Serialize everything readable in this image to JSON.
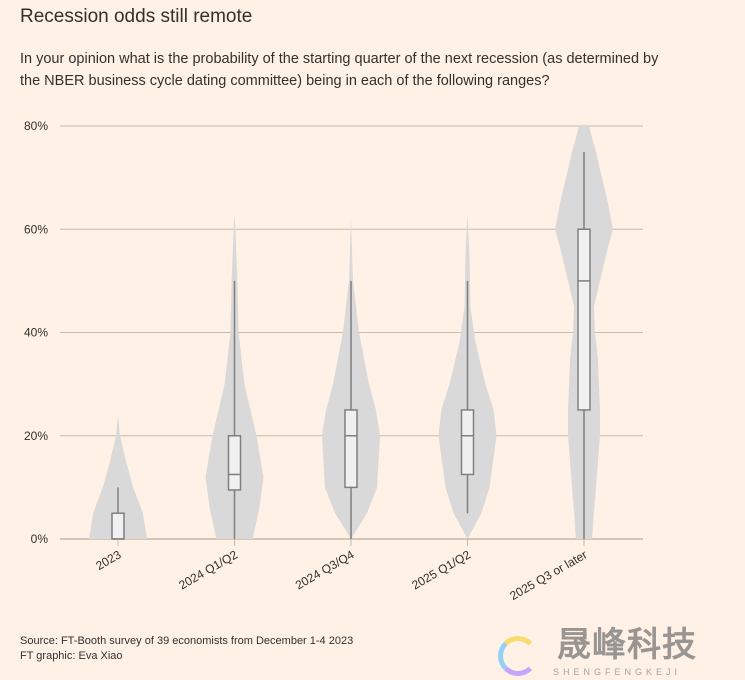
{
  "title": "Recession odds still remote",
  "subtitle": "In your opinion what is the probability of the starting quarter of the next recession (as determined by the NBER business cycle dating committee) being in each of the following ranges?",
  "footer": {
    "source": "Source: FT-Booth survey of 39 economists from December 1-4 2023",
    "graphic": "FT graphic: Eva Xiao"
  },
  "watermark": {
    "text_cn": "晟峰科技",
    "text_en": "SHENGFENGKEJI"
  },
  "colors": {
    "background": "#fff1e5",
    "violin": "#d9d9d9",
    "box_fill": "#f0f0f0",
    "box_stroke": "#7f7f7f",
    "grid": "#c8b9ab"
  },
  "chart_data": {
    "type": "violin-box",
    "title": "Recession odds still remote",
    "ylim": [
      0,
      80
    ],
    "yticks": [
      0,
      20,
      40,
      60,
      80
    ],
    "ytick_labels": [
      "0%",
      "20%",
      "40%",
      "60%",
      "80%"
    ],
    "grid": true,
    "categories": [
      "2023",
      "2024 Q1/Q2",
      "2024 Q3/Q4",
      "2025 Q1/Q2",
      "2025 Q3 or later"
    ],
    "boxes": [
      {
        "min": 0,
        "q1": 0,
        "median": 0,
        "q3": 5,
        "max": 10
      },
      {
        "min": 0,
        "q1": 9.5,
        "median": 12.5,
        "q3": 20,
        "max": 50
      },
      {
        "min": 0,
        "q1": 10,
        "median": 20,
        "q3": 25,
        "max": 50
      },
      {
        "min": 5,
        "q1": 12.5,
        "median": 20,
        "q3": 25,
        "max": 50
      },
      {
        "min": 0,
        "q1": 25,
        "median": 50,
        "q3": 60,
        "max": 75
      }
    ],
    "violin_density": [
      [
        [
          0,
          1
        ],
        [
          5,
          0.86
        ],
        [
          10,
          0.52
        ],
        [
          15,
          0.28
        ],
        [
          20,
          0.07
        ],
        [
          24,
          0
        ]
      ],
      [
        [
          0,
          0.62
        ],
        [
          6,
          0.86
        ],
        [
          12,
          1
        ],
        [
          20,
          0.76
        ],
        [
          30,
          0.34
        ],
        [
          40,
          0.14
        ],
        [
          50,
          0.1
        ],
        [
          60,
          0.03
        ],
        [
          63,
          0
        ]
      ],
      [
        [
          0,
          0
        ],
        [
          5,
          0.55
        ],
        [
          10,
          0.9
        ],
        [
          20,
          1
        ],
        [
          25,
          0.86
        ],
        [
          30,
          0.62
        ],
        [
          40,
          0.28
        ],
        [
          50,
          0.07
        ],
        [
          62,
          0
        ]
      ],
      [
        [
          0,
          0
        ],
        [
          5,
          0.48
        ],
        [
          10,
          0.76
        ],
        [
          20,
          1
        ],
        [
          25,
          0.9
        ],
        [
          30,
          0.62
        ],
        [
          38,
          0.28
        ],
        [
          45,
          0.1
        ],
        [
          55,
          0.07
        ],
        [
          63,
          0
        ]
      ],
      [
        [
          0,
          0.28
        ],
        [
          5,
          0.34
        ],
        [
          20,
          0.55
        ],
        [
          25,
          0.55
        ],
        [
          35,
          0.48
        ],
        [
          40,
          0.38
        ],
        [
          45,
          0.34
        ],
        [
          55,
          0.76
        ],
        [
          60,
          1
        ],
        [
          65,
          0.83
        ],
        [
          70,
          0.62
        ],
        [
          75,
          0.41
        ],
        [
          80,
          0.17
        ]
      ]
    ]
  }
}
